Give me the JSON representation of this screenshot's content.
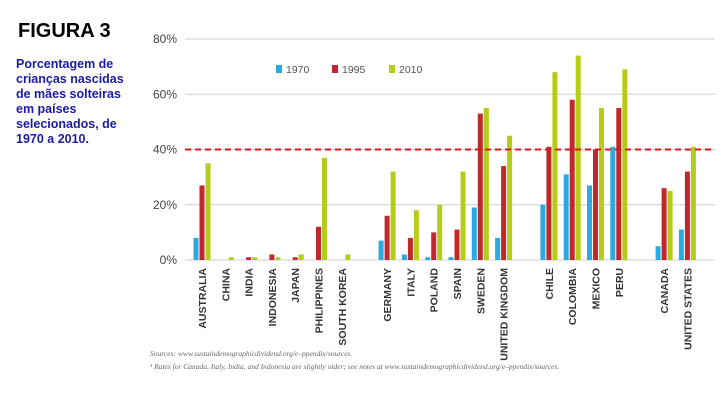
{
  "figure": {
    "label": "FIGURA 3",
    "caption": "Porcentagem de crianças nascidas de mães solteiras em países selecionados, de 1970 a 2010."
  },
  "sources": {
    "line1": "Sources: www.sustaindemographicdividend.org/e–ppendix/sources.",
    "line2": "¹ Rates for Canada, Italy, India, and Indonesia are slightly older; see notes at www.sustaindemographicdividend.org/e–ppendix/sources."
  },
  "colors": {
    "s1970": "#29abe2",
    "s1995": "#c1272d",
    "s2010": "#b5cc18",
    "reference": "#d7191c",
    "grid": "#cfcfcf"
  },
  "chart_data": {
    "type": "bar",
    "title": "",
    "xlabel": "",
    "ylabel": "",
    "ylim": [
      0,
      80
    ],
    "yticks": [
      "0%",
      "20%",
      "40%",
      "60%",
      "80%"
    ],
    "grid": true,
    "legend_position": "top",
    "reference_line": {
      "y": 40,
      "style": "dashed"
    },
    "categories": [
      "AUSTRALIA",
      "CHINA",
      "INDIA",
      "INDONESIA",
      "JAPAN",
      "PHILIPPINES",
      "SOUTH KOREA",
      "GERMANY",
      "ITALY",
      "POLAND",
      "SPAIN",
      "SWEDEN",
      "UNITED KINGDOM",
      "CHILE",
      "COLOMBIA",
      "MEXICO",
      "PERU",
      "CANADA",
      "UNITED STATES"
    ],
    "groups": [
      7,
      6,
      4,
      2
    ],
    "series": [
      {
        "name": "1970",
        "values": [
          8,
          0,
          0,
          0,
          0,
          0,
          0,
          7,
          2,
          1,
          1,
          19,
          8,
          20,
          31,
          27,
          41,
          5,
          11
        ]
      },
      {
        "name": "1995",
        "values": [
          27,
          0,
          1,
          2,
          1,
          12,
          0,
          16,
          8,
          10,
          11,
          53,
          34,
          41,
          58,
          40,
          55,
          26,
          32
        ]
      },
      {
        "name": "2010",
        "values": [
          35,
          1,
          1,
          1,
          2,
          37,
          2,
          32,
          18,
          20,
          32,
          55,
          45,
          68,
          74,
          55,
          69,
          25,
          41
        ]
      }
    ]
  }
}
